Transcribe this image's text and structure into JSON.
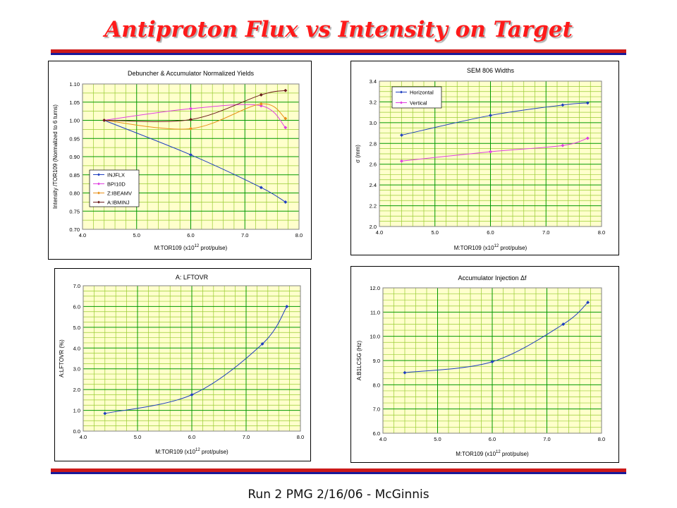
{
  "slide": {
    "title": "Antiproton Flux vs Intensity on Target",
    "footer": "Run 2 PMG 2/16/06 - McGinnis"
  },
  "colors": {
    "title": "#ff1a1a",
    "rule_red": "#cc1a1a",
    "rule_blue": "#1a1a99",
    "plot_area": "#ffffcc",
    "grid_major": "#009900",
    "grid_minor": "#99cc33"
  },
  "chart_data": [
    {
      "id": "yields",
      "type": "line",
      "title": "Debuncher & Accumulator Normalized Yields",
      "xlabel": "M:TOR109 (x10^12 prot/pulse)",
      "ylabel": "Intensity /TOR109 (Normalized to 6 turns)",
      "xlim": [
        4.0,
        8.0
      ],
      "ylim": [
        0.7,
        1.1
      ],
      "xticks": [
        "4.0",
        "5.0",
        "6.0",
        "7.0",
        "8.0"
      ],
      "yticks": [
        "0.70",
        "0.75",
        "0.80",
        "0.85",
        "0.90",
        "0.95",
        "1.00",
        "1.05",
        "1.10"
      ],
      "grid": true,
      "legend": "lower-left",
      "series": [
        {
          "name": "INJFLX",
          "color": "#1f3fbf",
          "x": [
            4.4,
            6.0,
            7.3,
            7.75
          ],
          "y": [
            1.0,
            0.905,
            0.815,
            0.775
          ]
        },
        {
          "name": "BPI10D",
          "color": "#e03fe0",
          "x": [
            4.4,
            6.0,
            7.3,
            7.75
          ],
          "y": [
            1.0,
            1.032,
            1.04,
            0.98
          ]
        },
        {
          "name": "Z:IBEAMV",
          "color": "#e8901a",
          "x": [
            4.4,
            6.0,
            7.3,
            7.75
          ],
          "y": [
            1.0,
            0.977,
            1.045,
            1.005
          ]
        },
        {
          "name": "A:IBMINJ",
          "color": "#6b1a1a",
          "x": [
            4.4,
            6.0,
            7.3,
            7.75
          ],
          "y": [
            1.0,
            1.002,
            1.07,
            1.082
          ]
        }
      ]
    },
    {
      "id": "sem806",
      "type": "line",
      "title": "SEM 806 Widths",
      "xlabel": "M:TOR109 (x10^12 prot/pulse)",
      "ylabel": "σ (mm)",
      "xlim": [
        4.0,
        8.0
      ],
      "ylim": [
        2.0,
        3.4
      ],
      "xticks": [
        "4.0",
        "5.0",
        "6.0",
        "7.0",
        "8.0"
      ],
      "yticks": [
        "2.0",
        "2.2",
        "2.4",
        "2.6",
        "2.8",
        "3.0",
        "3.2",
        "3.4"
      ],
      "grid": true,
      "legend": "top-left",
      "series": [
        {
          "name": "Horizontal",
          "color": "#1f3fbf",
          "x": [
            4.4,
            6.0,
            7.3,
            7.75
          ],
          "y": [
            2.88,
            3.07,
            3.17,
            3.19
          ]
        },
        {
          "name": "Vertical",
          "color": "#e03fe0",
          "x": [
            4.4,
            6.0,
            7.3,
            7.75
          ],
          "y": [
            2.63,
            2.72,
            2.78,
            2.85
          ]
        }
      ]
    },
    {
      "id": "lftovr",
      "type": "line",
      "title": "A: LFTOVR",
      "xlabel": "M:TOR109 (x10^12 prot/pulse)",
      "ylabel": "A:LFTOVR (%)",
      "xlim": [
        4.0,
        8.0
      ],
      "ylim": [
        0.0,
        7.0
      ],
      "xticks": [
        "4.0",
        "5.0",
        "6.0",
        "7.0",
        "8.0"
      ],
      "yticks": [
        "0.0",
        "1.0",
        "2.0",
        "3.0",
        "4.0",
        "5.0",
        "6.0",
        "7.0"
      ],
      "grid": true,
      "legend": "none",
      "series": [
        {
          "name": "",
          "color": "#1f3fbf",
          "x": [
            4.4,
            6.0,
            7.3,
            7.75
          ],
          "y": [
            0.85,
            1.75,
            4.2,
            6.0
          ]
        }
      ]
    },
    {
      "id": "accinj",
      "type": "line",
      "title": "Accumulator Injection Δf",
      "xlabel": "M:TOR109 (x10^12 prot/pulse)",
      "ylabel": "A:B1LCSG (Hz)",
      "xlim": [
        4.0,
        8.0
      ],
      "ylim": [
        6.0,
        12.0
      ],
      "xticks": [
        "4.0",
        "5.0",
        "6.0",
        "7.0",
        "8.0"
      ],
      "yticks": [
        "6.0",
        "7.0",
        "8.0",
        "9.0",
        "10.0",
        "11.0",
        "12.0"
      ],
      "grid": true,
      "legend": "none",
      "series": [
        {
          "name": "",
          "color": "#1f3fbf",
          "x": [
            4.4,
            6.0,
            7.3,
            7.75
          ],
          "y": [
            8.5,
            8.95,
            10.5,
            11.4
          ]
        }
      ]
    }
  ]
}
